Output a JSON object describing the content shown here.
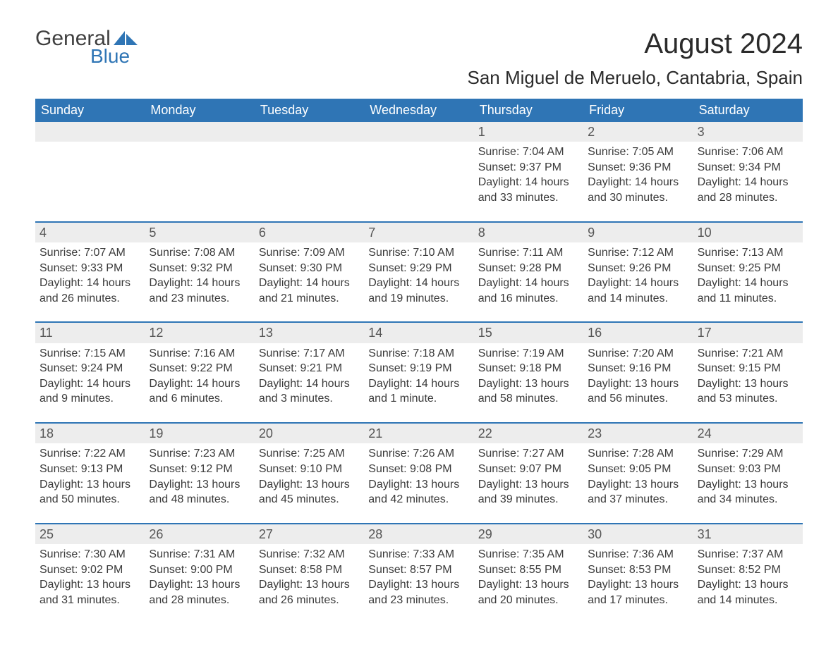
{
  "logo": {
    "text1": "General",
    "text2": "Blue",
    "accent": "#2f75b5"
  },
  "header": {
    "title": "August 2024",
    "location": "San Miguel de Meruelo, Cantabria, Spain"
  },
  "colors": {
    "header_bar": "#2f75b5",
    "daynum_bg": "#ededed",
    "text": "#3a3a3a",
    "page_bg": "#ffffff"
  },
  "weekdays": [
    "Sunday",
    "Monday",
    "Tuesday",
    "Wednesday",
    "Thursday",
    "Friday",
    "Saturday"
  ],
  "weeks": [
    [
      null,
      null,
      null,
      null,
      {
        "num": "1",
        "sunrise": "Sunrise: 7:04 AM",
        "sunset": "Sunset: 9:37 PM",
        "daylight1": "Daylight: 14 hours",
        "daylight2": "and 33 minutes."
      },
      {
        "num": "2",
        "sunrise": "Sunrise: 7:05 AM",
        "sunset": "Sunset: 9:36 PM",
        "daylight1": "Daylight: 14 hours",
        "daylight2": "and 30 minutes."
      },
      {
        "num": "3",
        "sunrise": "Sunrise: 7:06 AM",
        "sunset": "Sunset: 9:34 PM",
        "daylight1": "Daylight: 14 hours",
        "daylight2": "and 28 minutes."
      }
    ],
    [
      {
        "num": "4",
        "sunrise": "Sunrise: 7:07 AM",
        "sunset": "Sunset: 9:33 PM",
        "daylight1": "Daylight: 14 hours",
        "daylight2": "and 26 minutes."
      },
      {
        "num": "5",
        "sunrise": "Sunrise: 7:08 AM",
        "sunset": "Sunset: 9:32 PM",
        "daylight1": "Daylight: 14 hours",
        "daylight2": "and 23 minutes."
      },
      {
        "num": "6",
        "sunrise": "Sunrise: 7:09 AM",
        "sunset": "Sunset: 9:30 PM",
        "daylight1": "Daylight: 14 hours",
        "daylight2": "and 21 minutes."
      },
      {
        "num": "7",
        "sunrise": "Sunrise: 7:10 AM",
        "sunset": "Sunset: 9:29 PM",
        "daylight1": "Daylight: 14 hours",
        "daylight2": "and 19 minutes."
      },
      {
        "num": "8",
        "sunrise": "Sunrise: 7:11 AM",
        "sunset": "Sunset: 9:28 PM",
        "daylight1": "Daylight: 14 hours",
        "daylight2": "and 16 minutes."
      },
      {
        "num": "9",
        "sunrise": "Sunrise: 7:12 AM",
        "sunset": "Sunset: 9:26 PM",
        "daylight1": "Daylight: 14 hours",
        "daylight2": "and 14 minutes."
      },
      {
        "num": "10",
        "sunrise": "Sunrise: 7:13 AM",
        "sunset": "Sunset: 9:25 PM",
        "daylight1": "Daylight: 14 hours",
        "daylight2": "and 11 minutes."
      }
    ],
    [
      {
        "num": "11",
        "sunrise": "Sunrise: 7:15 AM",
        "sunset": "Sunset: 9:24 PM",
        "daylight1": "Daylight: 14 hours",
        "daylight2": "and 9 minutes."
      },
      {
        "num": "12",
        "sunrise": "Sunrise: 7:16 AM",
        "sunset": "Sunset: 9:22 PM",
        "daylight1": "Daylight: 14 hours",
        "daylight2": "and 6 minutes."
      },
      {
        "num": "13",
        "sunrise": "Sunrise: 7:17 AM",
        "sunset": "Sunset: 9:21 PM",
        "daylight1": "Daylight: 14 hours",
        "daylight2": "and 3 minutes."
      },
      {
        "num": "14",
        "sunrise": "Sunrise: 7:18 AM",
        "sunset": "Sunset: 9:19 PM",
        "daylight1": "Daylight: 14 hours",
        "daylight2": "and 1 minute."
      },
      {
        "num": "15",
        "sunrise": "Sunrise: 7:19 AM",
        "sunset": "Sunset: 9:18 PM",
        "daylight1": "Daylight: 13 hours",
        "daylight2": "and 58 minutes."
      },
      {
        "num": "16",
        "sunrise": "Sunrise: 7:20 AM",
        "sunset": "Sunset: 9:16 PM",
        "daylight1": "Daylight: 13 hours",
        "daylight2": "and 56 minutes."
      },
      {
        "num": "17",
        "sunrise": "Sunrise: 7:21 AM",
        "sunset": "Sunset: 9:15 PM",
        "daylight1": "Daylight: 13 hours",
        "daylight2": "and 53 minutes."
      }
    ],
    [
      {
        "num": "18",
        "sunrise": "Sunrise: 7:22 AM",
        "sunset": "Sunset: 9:13 PM",
        "daylight1": "Daylight: 13 hours",
        "daylight2": "and 50 minutes."
      },
      {
        "num": "19",
        "sunrise": "Sunrise: 7:23 AM",
        "sunset": "Sunset: 9:12 PM",
        "daylight1": "Daylight: 13 hours",
        "daylight2": "and 48 minutes."
      },
      {
        "num": "20",
        "sunrise": "Sunrise: 7:25 AM",
        "sunset": "Sunset: 9:10 PM",
        "daylight1": "Daylight: 13 hours",
        "daylight2": "and 45 minutes."
      },
      {
        "num": "21",
        "sunrise": "Sunrise: 7:26 AM",
        "sunset": "Sunset: 9:08 PM",
        "daylight1": "Daylight: 13 hours",
        "daylight2": "and 42 minutes."
      },
      {
        "num": "22",
        "sunrise": "Sunrise: 7:27 AM",
        "sunset": "Sunset: 9:07 PM",
        "daylight1": "Daylight: 13 hours",
        "daylight2": "and 39 minutes."
      },
      {
        "num": "23",
        "sunrise": "Sunrise: 7:28 AM",
        "sunset": "Sunset: 9:05 PM",
        "daylight1": "Daylight: 13 hours",
        "daylight2": "and 37 minutes."
      },
      {
        "num": "24",
        "sunrise": "Sunrise: 7:29 AM",
        "sunset": "Sunset: 9:03 PM",
        "daylight1": "Daylight: 13 hours",
        "daylight2": "and 34 minutes."
      }
    ],
    [
      {
        "num": "25",
        "sunrise": "Sunrise: 7:30 AM",
        "sunset": "Sunset: 9:02 PM",
        "daylight1": "Daylight: 13 hours",
        "daylight2": "and 31 minutes."
      },
      {
        "num": "26",
        "sunrise": "Sunrise: 7:31 AM",
        "sunset": "Sunset: 9:00 PM",
        "daylight1": "Daylight: 13 hours",
        "daylight2": "and 28 minutes."
      },
      {
        "num": "27",
        "sunrise": "Sunrise: 7:32 AM",
        "sunset": "Sunset: 8:58 PM",
        "daylight1": "Daylight: 13 hours",
        "daylight2": "and 26 minutes."
      },
      {
        "num": "28",
        "sunrise": "Sunrise: 7:33 AM",
        "sunset": "Sunset: 8:57 PM",
        "daylight1": "Daylight: 13 hours",
        "daylight2": "and 23 minutes."
      },
      {
        "num": "29",
        "sunrise": "Sunrise: 7:35 AM",
        "sunset": "Sunset: 8:55 PM",
        "daylight1": "Daylight: 13 hours",
        "daylight2": "and 20 minutes."
      },
      {
        "num": "30",
        "sunrise": "Sunrise: 7:36 AM",
        "sunset": "Sunset: 8:53 PM",
        "daylight1": "Daylight: 13 hours",
        "daylight2": "and 17 minutes."
      },
      {
        "num": "31",
        "sunrise": "Sunrise: 7:37 AM",
        "sunset": "Sunset: 8:52 PM",
        "daylight1": "Daylight: 13 hours",
        "daylight2": "and 14 minutes."
      }
    ]
  ]
}
